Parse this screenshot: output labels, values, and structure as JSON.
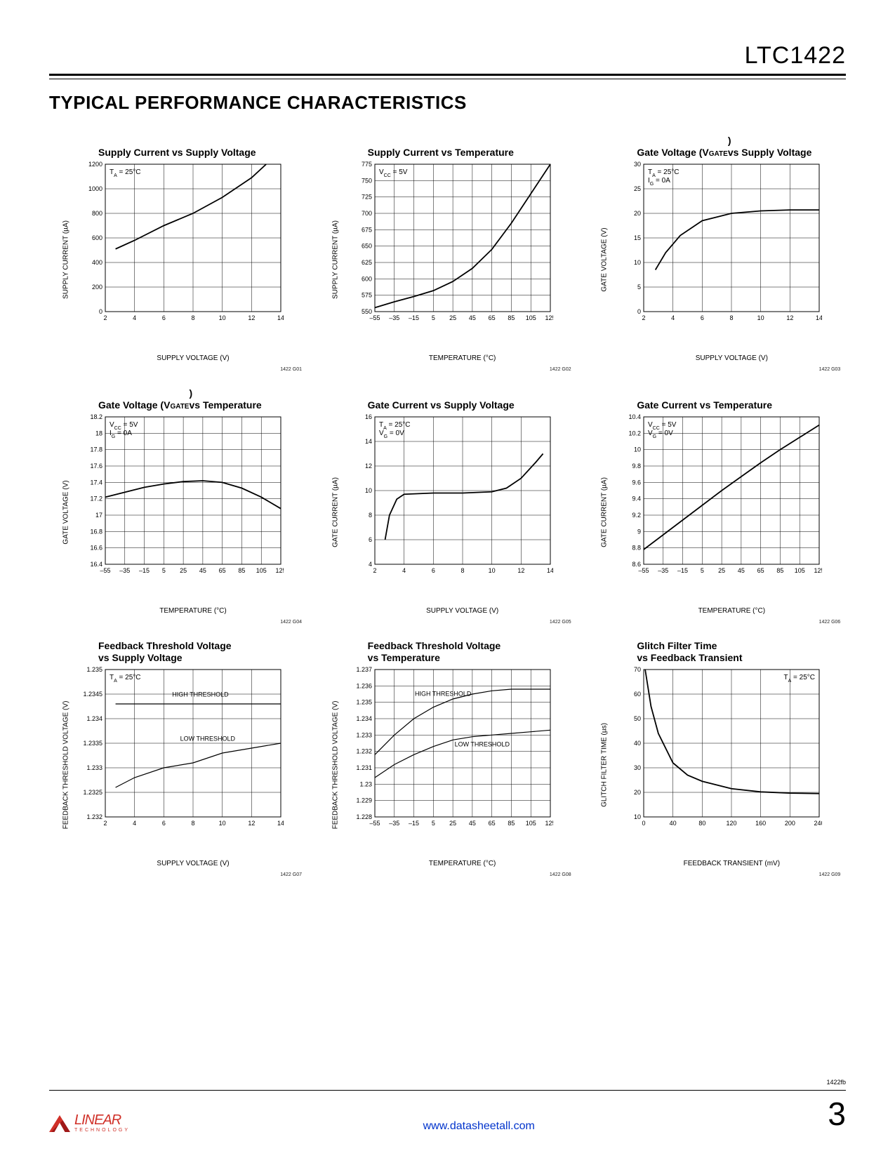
{
  "header": {
    "part_number": "LTC1422"
  },
  "section_title": "TYPICAL PERFORMANCE CHARACTERISTICS",
  "footer": {
    "url": "www.datasheetall.com",
    "page": "3",
    "rev": "1422fb",
    "logo_main": "LINEAR",
    "logo_sub": "TECHNOLOGY"
  },
  "charts": [
    {
      "title": "Supply Current vs Supply Voltage",
      "xlabel": "SUPPLY VOLTAGE (V)",
      "ylabel": "SUPPLY CURRENT (µA)",
      "fig_id": "1422 G01",
      "xlim": [
        2,
        14
      ],
      "xticks": [
        2,
        4,
        6,
        8,
        10,
        12,
        14
      ],
      "ylim": [
        0,
        1200
      ],
      "yticks": [
        0,
        200,
        400,
        600,
        800,
        1000,
        1200
      ],
      "conditions": [
        "T_A = 25°C"
      ],
      "series": [
        {
          "points": [
            [
              2.7,
              510
            ],
            [
              4,
              580
            ],
            [
              6,
              700
            ],
            [
              8,
              800
            ],
            [
              10,
              930
            ],
            [
              12,
              1090
            ],
            [
              13,
              1200
            ]
          ],
          "width": 1.8
        }
      ],
      "colors": {
        "line": "#000",
        "grid": "#000",
        "bg": "#fff"
      }
    },
    {
      "title": "Supply Current vs Temperature",
      "xlabel": "TEMPERATURE (°C)",
      "ylabel": "SUPPLY CURRENT (µA)",
      "fig_id": "1422 G02",
      "xlim": [
        -55,
        125
      ],
      "xticks": [
        -55,
        -35,
        -15,
        5,
        25,
        45,
        65,
        85,
        105,
        125
      ],
      "ylim": [
        550,
        775
      ],
      "yticks": [
        550,
        575,
        600,
        625,
        650,
        675,
        700,
        725,
        750,
        775
      ],
      "conditions": [
        "V_CC = 5V"
      ],
      "series": [
        {
          "points": [
            [
              -55,
              556
            ],
            [
              -35,
              565
            ],
            [
              -15,
              573
            ],
            [
              5,
              582
            ],
            [
              25,
              596
            ],
            [
              45,
              616
            ],
            [
              65,
              645
            ],
            [
              85,
              685
            ],
            [
              105,
              730
            ],
            [
              125,
              775
            ]
          ],
          "width": 1.8
        }
      ],
      "colors": {
        "line": "#000",
        "grid": "#000",
        "bg": "#fff"
      }
    },
    {
      "title": "Gate Voltage (V_GATE)\nvs Supply Voltage",
      "xlabel": "SUPPLY VOLTAGE (V)",
      "ylabel": "GATE VOLTAGE (V)",
      "fig_id": "1422 G03",
      "xlim": [
        2,
        14
      ],
      "xticks": [
        2,
        4,
        6,
        8,
        10,
        12,
        14
      ],
      "ylim": [
        0,
        30
      ],
      "yticks": [
        0,
        5,
        10,
        15,
        20,
        25,
        30
      ],
      "conditions": [
        "T_A = 25°C",
        "I_G = 0A"
      ],
      "series": [
        {
          "points": [
            [
              2.8,
              8.5
            ],
            [
              3.5,
              12
            ],
            [
              4.5,
              15.5
            ],
            [
              6,
              18.5
            ],
            [
              8,
              20
            ],
            [
              10,
              20.5
            ],
            [
              12,
              20.7
            ],
            [
              14,
              20.7
            ]
          ],
          "width": 1.8
        }
      ],
      "colors": {
        "line": "#000",
        "grid": "#000",
        "bg": "#fff"
      }
    },
    {
      "title": "Gate Voltage (V_GATE)\nvs Temperature",
      "xlabel": "TEMPERATURE (°C)",
      "ylabel": "GATE VOLTAGE (V)",
      "fig_id": "1422 G04",
      "xlim": [
        -55,
        125
      ],
      "xticks": [
        -55,
        -35,
        -15,
        5,
        25,
        45,
        65,
        85,
        105,
        125
      ],
      "ylim": [
        16.4,
        18.2
      ],
      "yticks": [
        16.4,
        16.6,
        16.8,
        17.0,
        17.2,
        17.4,
        17.6,
        17.8,
        18.0,
        18.2
      ],
      "conditions": [
        "V_CC = 5V",
        "I_G = 0A"
      ],
      "series": [
        {
          "points": [
            [
              -55,
              17.22
            ],
            [
              -35,
              17.28
            ],
            [
              -15,
              17.34
            ],
            [
              5,
              17.38
            ],
            [
              25,
              17.41
            ],
            [
              45,
              17.42
            ],
            [
              65,
              17.4
            ],
            [
              85,
              17.33
            ],
            [
              105,
              17.22
            ],
            [
              125,
              17.08
            ]
          ],
          "width": 1.8
        }
      ],
      "colors": {
        "line": "#000",
        "grid": "#000",
        "bg": "#fff"
      }
    },
    {
      "title": "Gate Current vs Supply Voltage",
      "xlabel": "SUPPLY VOLTAGE (V)",
      "ylabel": "GATE CURRENT (µA)",
      "fig_id": "1422 G05",
      "xlim": [
        2,
        14
      ],
      "xticks": [
        2,
        4,
        6,
        8,
        10,
        12,
        14
      ],
      "ylim": [
        4,
        16
      ],
      "yticks": [
        4,
        6,
        8,
        10,
        12,
        14,
        16
      ],
      "conditions": [
        "T_A = 25°C",
        "V_G = 0V"
      ],
      "series": [
        {
          "points": [
            [
              2.7,
              6
            ],
            [
              3,
              8
            ],
            [
              3.5,
              9.3
            ],
            [
              4,
              9.7
            ],
            [
              6,
              9.8
            ],
            [
              8,
              9.8
            ],
            [
              10,
              9.9
            ],
            [
              11,
              10.2
            ],
            [
              12,
              11
            ],
            [
              13,
              12.3
            ],
            [
              13.5,
              13
            ]
          ],
          "width": 1.8
        }
      ],
      "colors": {
        "line": "#000",
        "grid": "#000",
        "bg": "#fff"
      }
    },
    {
      "title": "Gate Current vs Temperature",
      "xlabel": "TEMPERATURE (°C)",
      "ylabel": "GATE CURRENT (µA)",
      "fig_id": "1422 G06",
      "xlim": [
        -55,
        125
      ],
      "xticks": [
        -55,
        -35,
        -15,
        5,
        25,
        45,
        65,
        85,
        105,
        125
      ],
      "ylim": [
        8.6,
        10.4
      ],
      "yticks": [
        8.6,
        8.8,
        9.0,
        9.2,
        9.4,
        9.6,
        9.8,
        10.0,
        10.2,
        10.4
      ],
      "conditions": [
        "V_CC = 5V",
        "V_G = 0V"
      ],
      "series": [
        {
          "points": [
            [
              -55,
              8.78
            ],
            [
              -35,
              8.96
            ],
            [
              -15,
              9.14
            ],
            [
              5,
              9.32
            ],
            [
              25,
              9.5
            ],
            [
              45,
              9.67
            ],
            [
              65,
              9.84
            ],
            [
              85,
              10.0
            ],
            [
              105,
              10.15
            ],
            [
              125,
              10.3
            ]
          ],
          "width": 1.8
        }
      ],
      "colors": {
        "line": "#000",
        "grid": "#000",
        "bg": "#fff"
      }
    },
    {
      "title": "Feedback Threshold Voltage\nvs Supply Voltage",
      "xlabel": "SUPPLY VOLTAGE (V)",
      "ylabel": "FEEDBACK THRESHOLD VOLTAGE (V)",
      "fig_id": "1422 G07",
      "xlim": [
        2,
        14
      ],
      "xticks": [
        2,
        4,
        6,
        8,
        10,
        12,
        14
      ],
      "ylim": [
        1.232,
        1.235
      ],
      "yticks": [
        1.232,
        1.2325,
        1.233,
        1.2335,
        1.234,
        1.2345,
        1.235
      ],
      "conditions": [
        "T_A = 25°C"
      ],
      "series": [
        {
          "points": [
            [
              2.7,
              1.2343
            ],
            [
              6,
              1.2343
            ],
            [
              10,
              1.2343
            ],
            [
              14,
              1.2343
            ]
          ],
          "width": 1.2,
          "label": "HIGH THRESHOLD",
          "label_pos": [
            8.5,
            1.23445
          ]
        },
        {
          "points": [
            [
              2.7,
              1.2326
            ],
            [
              4,
              1.2328
            ],
            [
              6,
              1.233
            ],
            [
              8,
              1.2331
            ],
            [
              10,
              1.2333
            ],
            [
              12,
              1.2334
            ],
            [
              14,
              1.2335
            ]
          ],
          "width": 1.2,
          "label": "LOW THRESHOLD",
          "label_pos": [
            9,
            1.23355
          ]
        }
      ],
      "colors": {
        "line": "#000",
        "grid": "#000",
        "bg": "#fff"
      }
    },
    {
      "title": "Feedback Threshold Voltage\nvs Temperature",
      "xlabel": "TEMPERATURE (°C)",
      "ylabel": "FEEDBACK THRESHOLD VOLTAGE (V)",
      "fig_id": "1422 G08",
      "xlim": [
        -55,
        125
      ],
      "xticks": [
        -55,
        -35,
        -15,
        5,
        25,
        45,
        65,
        85,
        105,
        125
      ],
      "ylim": [
        1.228,
        1.237
      ],
      "yticks": [
        1.228,
        1.229,
        1.23,
        1.231,
        1.232,
        1.233,
        1.234,
        1.235,
        1.236,
        1.237
      ],
      "conditions": [],
      "series": [
        {
          "points": [
            [
              -55,
              1.2318
            ],
            [
              -35,
              1.233
            ],
            [
              -15,
              1.234
            ],
            [
              5,
              1.2347
            ],
            [
              25,
              1.2352
            ],
            [
              45,
              1.2355
            ],
            [
              65,
              1.2357
            ],
            [
              85,
              1.2358
            ],
            [
              105,
              1.2358
            ],
            [
              125,
              1.2358
            ]
          ],
          "width": 1.2,
          "label": "HIGH THRESHOLD",
          "label_pos": [
            15,
            1.2354
          ]
        },
        {
          "points": [
            [
              -55,
              1.2304
            ],
            [
              -35,
              1.2312
            ],
            [
              -15,
              1.2318
            ],
            [
              5,
              1.2323
            ],
            [
              25,
              1.2327
            ],
            [
              45,
              1.2329
            ],
            [
              65,
              1.233
            ],
            [
              85,
              1.2331
            ],
            [
              105,
              1.2332
            ],
            [
              125,
              1.2333
            ]
          ],
          "width": 1.2,
          "label": "LOW THRESHOLD",
          "label_pos": [
            55,
            1.2323
          ]
        }
      ],
      "colors": {
        "line": "#000",
        "grid": "#000",
        "bg": "#fff"
      }
    },
    {
      "title": "Glitch Filter Time\nvs Feedback Transient",
      "xlabel": "FEEDBACK TRANSIENT (mV)",
      "ylabel": "GLITCH FILTER TIME (µs)",
      "fig_id": "1422 G09",
      "xlim": [
        0,
        240
      ],
      "xticks": [
        0,
        40,
        80,
        120,
        160,
        200,
        240
      ],
      "ylim": [
        10,
        70
      ],
      "yticks": [
        10,
        20,
        30,
        40,
        50,
        60,
        70
      ],
      "conditions": [
        "T_A = 25°C"
      ],
      "conditions_pos": "right",
      "series": [
        {
          "points": [
            [
              2,
              70
            ],
            [
              10,
              55
            ],
            [
              20,
              44
            ],
            [
              40,
              32
            ],
            [
              60,
              27
            ],
            [
              80,
              24.5
            ],
            [
              120,
              21.5
            ],
            [
              160,
              20.2
            ],
            [
              200,
              19.7
            ],
            [
              240,
              19.5
            ]
          ],
          "width": 1.8
        }
      ],
      "colors": {
        "line": "#000",
        "grid": "#000",
        "bg": "#fff"
      }
    }
  ]
}
